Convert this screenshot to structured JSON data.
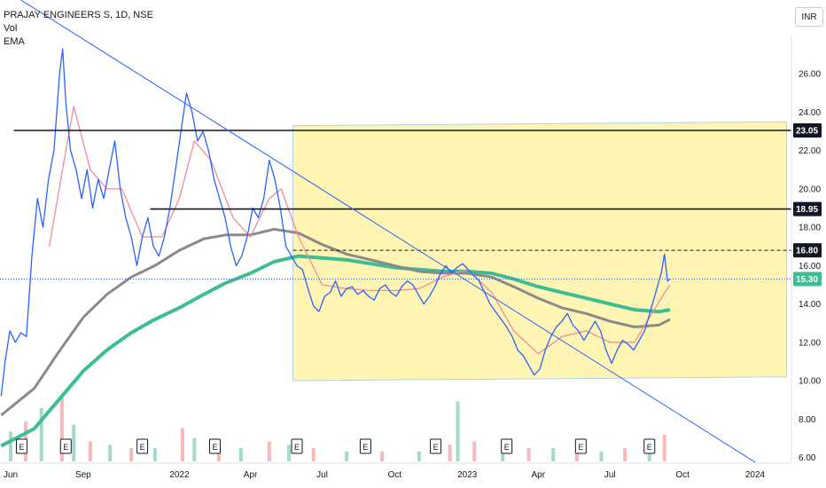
{
  "legend": {
    "title": "PRAJAY ENGINEERS S, 1D, NSE",
    "vol": "Vol",
    "ema": "EMA"
  },
  "currency_button": "INR",
  "colors": {
    "price": "#2962ff",
    "ema_fast": "#f28b9a",
    "ema_mid": "#8a8a8a",
    "ema_slow": "#3ebd93",
    "zone_fill": "#fff5b3",
    "trendline": "#2962ff",
    "level": "#131722"
  },
  "chart_data": {
    "type": "line",
    "title": "PRAJAY ENGINEERS S, 1D, NSE",
    "y_axis": {
      "ylim": [
        5.7,
        28.0
      ],
      "ticks": [
        "6.00",
        "8.00",
        "10.00",
        "12.00",
        "14.00",
        "16.00",
        "18.00",
        "20.00",
        "22.00",
        "24.00",
        "26.00"
      ]
    },
    "x_axis": {
      "ticks": [
        "Jun",
        "Sep",
        "2022",
        "Apr",
        "Jul",
        "Oct",
        "2023",
        "Apr",
        "Jul",
        "Oct",
        "2024"
      ],
      "tick_dates": [
        "2021-06-01",
        "2021-09-01",
        "2022-01-01",
        "2022-04-01",
        "2022-07-01",
        "2022-10-01",
        "2023-01-01",
        "2023-04-01",
        "2023-07-01",
        "2023-10-01",
        "2024-01-01"
      ]
    },
    "series": [
      {
        "name": "",
        "key": "price",
        "points": [
          [
            "2021-05-20",
            9.2
          ],
          [
            "2021-05-25",
            11.0
          ],
          [
            "2021-05-31",
            12.6
          ],
          [
            "2021-06-07",
            12.0
          ],
          [
            "2021-06-14",
            12.5
          ],
          [
            "2021-06-21",
            12.3
          ],
          [
            "2021-06-28",
            16.5
          ],
          [
            "2021-07-05",
            19.5
          ],
          [
            "2021-07-12",
            18.0
          ],
          [
            "2021-07-19",
            20.5
          ],
          [
            "2021-07-26",
            22.0
          ],
          [
            "2021-08-02",
            26.0
          ],
          [
            "2021-08-06",
            27.3
          ],
          [
            "2021-08-10",
            24.5
          ],
          [
            "2021-08-16",
            22.0
          ],
          [
            "2021-08-23",
            21.0
          ],
          [
            "2021-08-30",
            19.5
          ],
          [
            "2021-09-06",
            21.0
          ],
          [
            "2021-09-13",
            19.0
          ],
          [
            "2021-09-20",
            20.5
          ],
          [
            "2021-09-27",
            19.5
          ],
          [
            "2021-10-04",
            21.0
          ],
          [
            "2021-10-11",
            22.5
          ],
          [
            "2021-10-18",
            20.0
          ],
          [
            "2021-10-25",
            18.5
          ],
          [
            "2021-11-01",
            17.5
          ],
          [
            "2021-11-08",
            16.0
          ],
          [
            "2021-11-15",
            17.5
          ],
          [
            "2021-11-22",
            18.5
          ],
          [
            "2021-11-29",
            17.0
          ],
          [
            "2021-12-06",
            16.5
          ],
          [
            "2021-12-13",
            17.5
          ],
          [
            "2021-12-20",
            19.0
          ],
          [
            "2021-12-27",
            21.0
          ],
          [
            "2022-01-03",
            23.0
          ],
          [
            "2022-01-10",
            25.0
          ],
          [
            "2022-01-17",
            24.0
          ],
          [
            "2022-01-24",
            22.5
          ],
          [
            "2022-01-31",
            23.0
          ],
          [
            "2022-02-07",
            22.0
          ],
          [
            "2022-02-14",
            20.5
          ],
          [
            "2022-02-21",
            19.5
          ],
          [
            "2022-02-28",
            18.5
          ],
          [
            "2022-03-07",
            17.0
          ],
          [
            "2022-03-14",
            16.0
          ],
          [
            "2022-03-21",
            16.5
          ],
          [
            "2022-03-28",
            17.5
          ],
          [
            "2022-04-04",
            19.0
          ],
          [
            "2022-04-11",
            18.5
          ],
          [
            "2022-04-18",
            19.5
          ],
          [
            "2022-04-25",
            21.5
          ],
          [
            "2022-05-02",
            20.5
          ],
          [
            "2022-05-09",
            19.0
          ],
          [
            "2022-05-16",
            17.0
          ],
          [
            "2022-05-23",
            16.5
          ],
          [
            "2022-05-30",
            16.0
          ],
          [
            "2022-06-06",
            15.8
          ],
          [
            "2022-06-13",
            14.8
          ],
          [
            "2022-06-20",
            13.9
          ],
          [
            "2022-06-27",
            13.6
          ],
          [
            "2022-07-04",
            14.4
          ],
          [
            "2022-07-11",
            14.6
          ],
          [
            "2022-07-18",
            15.2
          ],
          [
            "2022-07-25",
            14.4
          ],
          [
            "2022-08-01",
            14.8
          ],
          [
            "2022-08-08",
            14.9
          ],
          [
            "2022-08-15",
            14.5
          ],
          [
            "2022-08-22",
            14.7
          ],
          [
            "2022-08-29",
            14.4
          ],
          [
            "2022-09-05",
            14.2
          ],
          [
            "2022-09-12",
            14.8
          ],
          [
            "2022-09-19",
            15.0
          ],
          [
            "2022-09-26",
            14.6
          ],
          [
            "2022-10-03",
            14.4
          ],
          [
            "2022-10-10",
            14.9
          ],
          [
            "2022-10-17",
            15.2
          ],
          [
            "2022-10-24",
            15.0
          ],
          [
            "2022-10-31",
            14.5
          ],
          [
            "2022-11-07",
            14.0
          ],
          [
            "2022-11-14",
            14.4
          ],
          [
            "2022-11-21",
            14.9
          ],
          [
            "2022-11-28",
            15.6
          ],
          [
            "2022-12-05",
            16.0
          ],
          [
            "2022-12-12",
            15.6
          ],
          [
            "2022-12-19",
            15.9
          ],
          [
            "2022-12-26",
            16.1
          ],
          [
            "2023-01-02",
            15.8
          ],
          [
            "2023-01-09",
            15.5
          ],
          [
            "2023-01-16",
            15.2
          ],
          [
            "2023-01-23",
            14.6
          ],
          [
            "2023-01-30",
            14.0
          ],
          [
            "2023-02-06",
            13.6
          ],
          [
            "2023-02-13",
            13.2
          ],
          [
            "2023-02-20",
            12.8
          ],
          [
            "2023-02-27",
            12.3
          ],
          [
            "2023-03-06",
            11.6
          ],
          [
            "2023-03-13",
            11.3
          ],
          [
            "2023-03-20",
            10.8
          ],
          [
            "2023-03-27",
            10.3
          ],
          [
            "2023-04-03",
            10.6
          ],
          [
            "2023-04-10",
            11.6
          ],
          [
            "2023-04-17",
            12.3
          ],
          [
            "2023-04-24",
            12.8
          ],
          [
            "2023-05-01",
            13.1
          ],
          [
            "2023-05-08",
            13.5
          ],
          [
            "2023-05-15",
            12.9
          ],
          [
            "2023-05-22",
            12.6
          ],
          [
            "2023-05-29",
            12.1
          ],
          [
            "2023-06-05",
            12.6
          ],
          [
            "2023-06-12",
            13.1
          ],
          [
            "2023-06-19",
            12.6
          ],
          [
            "2023-06-26",
            11.6
          ],
          [
            "2023-07-03",
            10.9
          ],
          [
            "2023-07-10",
            11.6
          ],
          [
            "2023-07-17",
            12.1
          ],
          [
            "2023-07-24",
            11.9
          ],
          [
            "2023-07-31",
            11.6
          ],
          [
            "2023-08-07",
            12.1
          ],
          [
            "2023-08-14",
            12.6
          ],
          [
            "2023-08-21",
            13.6
          ],
          [
            "2023-08-28",
            14.6
          ],
          [
            "2023-09-04",
            15.6
          ],
          [
            "2023-09-08",
            16.6
          ],
          [
            "2023-09-12",
            15.2
          ],
          [
            "2023-09-15",
            15.3
          ]
        ]
      },
      {
        "name": "",
        "key": "ema_fast",
        "points": [
          [
            "2021-07-20",
            17.0
          ],
          [
            "2021-08-10",
            22.0
          ],
          [
            "2021-08-20",
            24.3
          ],
          [
            "2021-09-10",
            21.0
          ],
          [
            "2021-10-01",
            20.0
          ],
          [
            "2021-10-20",
            20.0
          ],
          [
            "2021-11-15",
            17.5
          ],
          [
            "2021-12-10",
            17.5
          ],
          [
            "2022-01-01",
            19.5
          ],
          [
            "2022-01-20",
            22.5
          ],
          [
            "2022-02-10",
            21.5
          ],
          [
            "2022-03-10",
            18.5
          ],
          [
            "2022-04-01",
            17.5
          ],
          [
            "2022-04-25",
            19.5
          ],
          [
            "2022-05-10",
            20.0
          ],
          [
            "2022-06-01",
            17.5
          ],
          [
            "2022-07-01",
            15.0
          ],
          [
            "2022-08-01",
            14.8
          ],
          [
            "2022-09-01",
            14.7
          ],
          [
            "2022-10-01",
            14.7
          ],
          [
            "2022-11-01",
            14.8
          ],
          [
            "2022-12-01",
            15.4
          ],
          [
            "2023-01-01",
            15.8
          ],
          [
            "2023-02-01",
            14.6
          ],
          [
            "2023-03-01",
            12.6
          ],
          [
            "2023-04-01",
            11.4
          ],
          [
            "2023-05-01",
            12.3
          ],
          [
            "2023-06-01",
            12.6
          ],
          [
            "2023-07-01",
            12.0
          ],
          [
            "2023-08-01",
            12.0
          ],
          [
            "2023-09-01",
            14.1
          ],
          [
            "2023-09-15",
            15.0
          ]
        ]
      },
      {
        "name": "",
        "key": "ema_mid",
        "points": [
          [
            "2021-05-20",
            8.2
          ],
          [
            "2021-07-01",
            9.6
          ],
          [
            "2021-08-01",
            11.5
          ],
          [
            "2021-09-01",
            13.3
          ],
          [
            "2021-10-01",
            14.5
          ],
          [
            "2021-11-01",
            15.4
          ],
          [
            "2021-12-01",
            16.0
          ],
          [
            "2022-01-01",
            16.8
          ],
          [
            "2022-02-01",
            17.4
          ],
          [
            "2022-03-01",
            17.6
          ],
          [
            "2022-04-01",
            17.6
          ],
          [
            "2022-05-01",
            17.9
          ],
          [
            "2022-06-01",
            17.7
          ],
          [
            "2022-07-01",
            17.1
          ],
          [
            "2022-08-01",
            16.6
          ],
          [
            "2022-09-01",
            16.3
          ],
          [
            "2022-10-01",
            16.0
          ],
          [
            "2022-11-01",
            15.7
          ],
          [
            "2022-12-01",
            15.6
          ],
          [
            "2023-01-01",
            15.6
          ],
          [
            "2023-02-01",
            15.4
          ],
          [
            "2023-03-01",
            14.9
          ],
          [
            "2023-04-01",
            14.3
          ],
          [
            "2023-05-01",
            13.8
          ],
          [
            "2023-06-01",
            13.5
          ],
          [
            "2023-07-01",
            13.1
          ],
          [
            "2023-08-01",
            12.8
          ],
          [
            "2023-09-01",
            12.9
          ],
          [
            "2023-09-15",
            13.2
          ]
        ]
      },
      {
        "name": "",
        "key": "ema_slow",
        "points": [
          [
            "2021-05-20",
            6.6
          ],
          [
            "2021-07-01",
            7.5
          ],
          [
            "2021-08-01",
            9.0
          ],
          [
            "2021-09-01",
            10.5
          ],
          [
            "2021-10-01",
            11.6
          ],
          [
            "2021-11-01",
            12.5
          ],
          [
            "2021-12-01",
            13.2
          ],
          [
            "2022-01-01",
            13.8
          ],
          [
            "2022-02-01",
            14.5
          ],
          [
            "2022-03-01",
            15.1
          ],
          [
            "2022-04-01",
            15.6
          ],
          [
            "2022-05-01",
            16.2
          ],
          [
            "2022-06-01",
            16.5
          ],
          [
            "2022-07-01",
            16.4
          ],
          [
            "2022-08-01",
            16.3
          ],
          [
            "2022-09-01",
            16.1
          ],
          [
            "2022-10-01",
            15.9
          ],
          [
            "2022-11-01",
            15.8
          ],
          [
            "2022-12-01",
            15.7
          ],
          [
            "2023-01-01",
            15.7
          ],
          [
            "2023-02-01",
            15.6
          ],
          [
            "2023-03-01",
            15.3
          ],
          [
            "2023-04-01",
            14.9
          ],
          [
            "2023-05-01",
            14.6
          ],
          [
            "2023-06-01",
            14.3
          ],
          [
            "2023-07-01",
            14.0
          ],
          [
            "2023-08-01",
            13.7
          ],
          [
            "2023-09-01",
            13.6
          ],
          [
            "2023-09-15",
            13.7
          ]
        ]
      }
    ],
    "zone": {
      "x_start": "2022-05-25",
      "x_end": "2024-02-10",
      "y_top_start": 23.3,
      "y_top_end": 23.5,
      "y_bottom_start": 10.0,
      "y_bottom_end": 10.2
    },
    "trendline": {
      "start": [
        "2021-05-20",
        30.5
      ],
      "end": [
        "2024-01-01",
        5.75
      ]
    },
    "horizontal_levels": [
      {
        "value": 23.05,
        "label": "23.05",
        "x_start": "2021-06-05"
      },
      {
        "value": 18.95,
        "label": "18.95",
        "x_start": "2021-11-25"
      },
      {
        "value": 16.8,
        "label": "16.80",
        "x_start": "2022-05-25",
        "dashed": true
      }
    ],
    "last_price": {
      "value": 15.3,
      "label": "15.30"
    },
    "earnings_markers": {
      "label": "E",
      "dates": [
        "2021-06-15",
        "2021-08-10",
        "2021-11-15",
        "2022-02-15",
        "2022-05-30",
        "2022-08-25",
        "2022-11-22",
        "2023-02-20",
        "2023-05-25",
        "2023-08-20"
      ]
    },
    "volume": {
      "series_name": "Vol",
      "bars": [
        [
          "2021-06-01",
          0.45
        ],
        [
          "2021-06-20",
          0.6
        ],
        [
          "2021-07-10",
          0.8
        ],
        [
          "2021-08-05",
          1.0
        ],
        [
          "2021-08-20",
          0.55
        ],
        [
          "2021-09-10",
          0.3
        ],
        [
          "2021-10-05",
          0.25
        ],
        [
          "2021-11-01",
          0.2
        ],
        [
          "2021-12-01",
          0.2
        ],
        [
          "2022-01-05",
          0.5
        ],
        [
          "2022-01-20",
          0.35
        ],
        [
          "2022-02-20",
          0.25
        ],
        [
          "2022-03-20",
          0.2
        ],
        [
          "2022-04-25",
          0.3
        ],
        [
          "2022-05-20",
          0.25
        ],
        [
          "2022-06-20",
          0.2
        ],
        [
          "2022-08-01",
          0.15
        ],
        [
          "2022-09-15",
          0.15
        ],
        [
          "2022-11-01",
          0.15
        ],
        [
          "2022-12-10",
          0.25
        ],
        [
          "2022-12-20",
          0.9
        ],
        [
          "2023-01-10",
          0.3
        ],
        [
          "2023-02-15",
          0.15
        ],
        [
          "2023-03-20",
          0.2
        ],
        [
          "2023-04-20",
          0.2
        ],
        [
          "2023-05-20",
          0.15
        ],
        [
          "2023-06-20",
          0.15
        ],
        [
          "2023-07-20",
          0.2
        ],
        [
          "2023-08-20",
          0.3
        ],
        [
          "2023-09-08",
          0.4
        ]
      ]
    }
  }
}
